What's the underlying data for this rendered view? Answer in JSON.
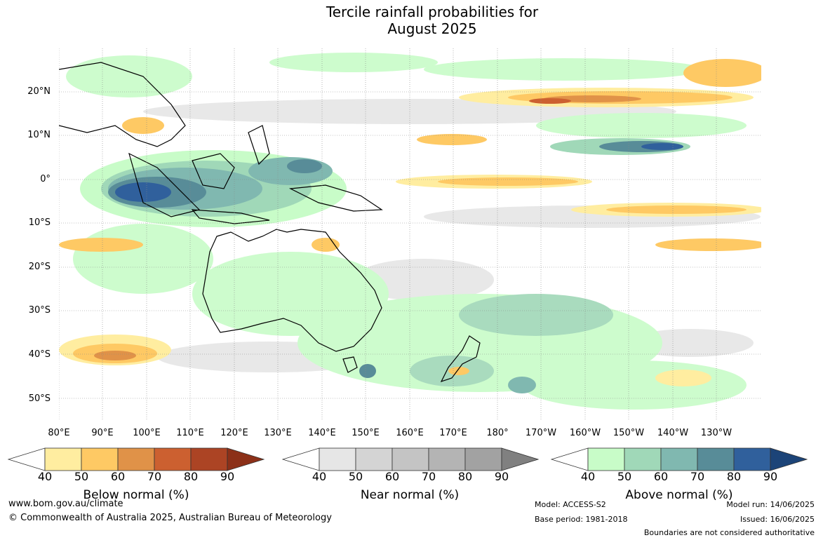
{
  "title": {
    "line1": "Tercile rainfall probabilities for",
    "line2": "August 2025"
  },
  "lat_labels": [
    "20°N",
    "10°N",
    "0°",
    "10°S",
    "20°S",
    "30°S",
    "40°S",
    "50°S"
  ],
  "lon_labels": [
    "80°E",
    "90°E",
    "100°E",
    "110°E",
    "120°E",
    "130°E",
    "140°E",
    "150°E",
    "160°E",
    "170°E",
    "180°",
    "170°W",
    "160°W",
    "150°W",
    "140°W",
    "130°W"
  ],
  "colorbars": [
    {
      "label": "Below normal (%)",
      "ticks": [
        "40",
        "50",
        "60",
        "70",
        "80",
        "90"
      ],
      "colors": [
        "#ffeda0",
        "#fec964",
        "#e09248",
        "#cc6030",
        "#ac4424"
      ],
      "extend_color": "#8c3018"
    },
    {
      "label": "Near normal (%)",
      "ticks": [
        "40",
        "50",
        "60",
        "70",
        "80",
        "90"
      ],
      "colors": [
        "#e6e6e6",
        "#d4d4d4",
        "#c4c4c4",
        "#b4b4b4",
        "#a2a2a2"
      ],
      "extend_color": "#808080"
    },
    {
      "label": "Above normal (%)",
      "ticks": [
        "40",
        "50",
        "60",
        "70",
        "80",
        "90"
      ],
      "colors": [
        "#c8fcc8",
        "#a0d8b8",
        "#80b8b0",
        "#588c98",
        "#30609c"
      ],
      "extend_color": "#1c4478"
    }
  ],
  "footer": {
    "website": "www.bom.gov.au/climate",
    "copyright": "© Commonwealth of Australia 2025, Australian Bureau of Meteorology",
    "model": "Model: ACCESS-S2",
    "base_period": "Base period: 1981-2018",
    "model_run": "Model run: 14/06/2025",
    "issued": "Issued: 16/06/2025",
    "boundaries": "Boundaries are not considered authoritative"
  }
}
